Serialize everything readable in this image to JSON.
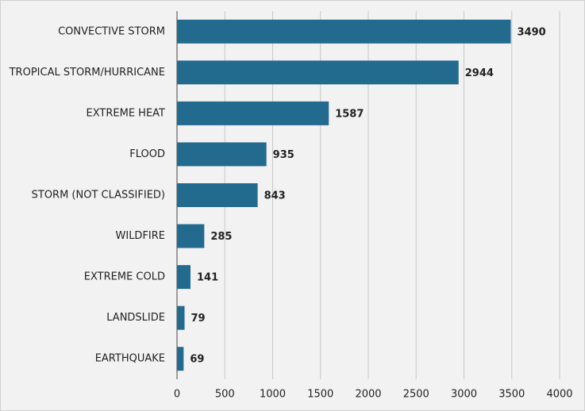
{
  "chart_data": {
    "type": "bar",
    "orientation": "horizontal",
    "categories": [
      "CONVECTIVE STORM",
      "TROPICAL STORM/HURRICANE",
      "EXTREME HEAT",
      "FLOOD",
      "STORM (NOT CLASSIFIED)",
      "WILDFIRE",
      "EXTREME COLD",
      "LANDSLIDE",
      "EARTHQUAKE"
    ],
    "values": [
      3490,
      2944,
      1587,
      935,
      843,
      285,
      141,
      79,
      69
    ],
    "color": "#236a8f",
    "xlim": [
      0,
      4000
    ],
    "xticks": [
      0,
      500,
      1000,
      1500,
      2000,
      2500,
      3000,
      3500,
      4000
    ],
    "grid": true
  }
}
